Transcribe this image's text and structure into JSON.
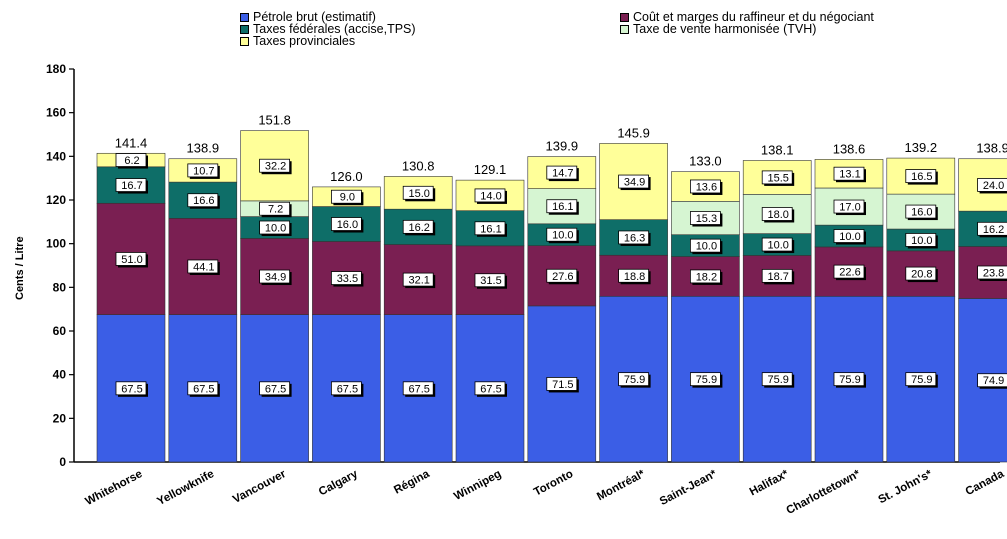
{
  "chart_data": {
    "type": "bar",
    "stacked": true,
    "title": "",
    "xlabel": "",
    "ylabel": "Cents / Litre",
    "ylim": [
      0,
      180
    ],
    "yticks": [
      "0",
      "20",
      "40",
      "60",
      "80",
      "100",
      "120",
      "140",
      "160",
      "180"
    ],
    "legend_position": "top",
    "categories": [
      "Whitehorse",
      "Yellowknife",
      "Vancouver",
      "Calgary",
      "Régina",
      "Winnipeg",
      "Toronto",
      "Montréal*",
      "Saint-Jean*",
      "Halifax*",
      "Charlottetown*",
      "St. John's*",
      "Canada"
    ],
    "totals": [
      "141.4",
      "138.9",
      "151.8",
      "126.0",
      "130.8",
      "129.1",
      "139.9",
      "145.9",
      "133.0",
      "138.1",
      "138.6",
      "139.2",
      "138.9"
    ],
    "series": [
      {
        "name": "Pétrole brut (estimatif)",
        "color": "#3B5EE6",
        "values": [
          67.5,
          67.5,
          67.5,
          67.5,
          67.5,
          67.5,
          71.5,
          75.9,
          75.9,
          75.9,
          75.9,
          75.9,
          74.9
        ],
        "labels": [
          "67.5",
          "67.5",
          "67.5",
          "67.5",
          "67.5",
          "67.5",
          "71.5",
          "75.9",
          "75.9",
          "75.9",
          "75.9",
          "75.9",
          "74.9"
        ]
      },
      {
        "name": "Coût et marges du raffineur et du négociant",
        "color": "#7A1F52",
        "values": [
          51.0,
          44.1,
          34.9,
          33.5,
          32.1,
          31.5,
          27.6,
          18.8,
          18.2,
          18.7,
          22.6,
          20.8,
          23.8
        ],
        "labels": [
          "51.0",
          "44.1",
          "34.9",
          "33.5",
          "32.1",
          "31.5",
          "27.6",
          "18.8",
          "18.2",
          "18.7",
          "22.6",
          "20.8",
          "23.8"
        ]
      },
      {
        "name": "Taxes fédérales (accise,TPS)",
        "color": "#0E6E68",
        "values": [
          16.7,
          16.6,
          10.0,
          16.0,
          16.2,
          16.1,
          10.0,
          16.3,
          10.0,
          10.0,
          10.0,
          10.0,
          16.2
        ],
        "labels": [
          "16.7",
          "16.6",
          "10.0",
          "16.0",
          "16.2",
          "16.1",
          "10.0",
          "16.3",
          "10.0",
          "10.0",
          "10.0",
          "10.0",
          "16.2"
        ]
      },
      {
        "name": "Taxe de vente harmonisée (TVH)",
        "color": "#D6F5D2",
        "values": [
          0,
          0,
          7.2,
          0,
          0,
          0,
          16.1,
          0,
          15.3,
          18.0,
          17.0,
          16.0,
          0
        ],
        "labels": [
          "",
          "",
          "7.2",
          "",
          "",
          "",
          "16.1",
          "",
          "15.3",
          "18.0",
          "17.0",
          "16.0",
          ""
        ]
      },
      {
        "name": "Taxes provinciales",
        "color": "#FFFF99",
        "values": [
          6.2,
          10.7,
          32.2,
          9.0,
          15.0,
          14.0,
          14.7,
          34.9,
          13.6,
          15.5,
          13.1,
          16.5,
          24.0
        ],
        "labels": [
          "6.2",
          "10.7",
          "32.2",
          "9.0",
          "15.0",
          "14.0",
          "14.7",
          "34.9",
          "13.6",
          "15.5",
          "13.1",
          "16.5",
          "24.0"
        ]
      }
    ]
  }
}
